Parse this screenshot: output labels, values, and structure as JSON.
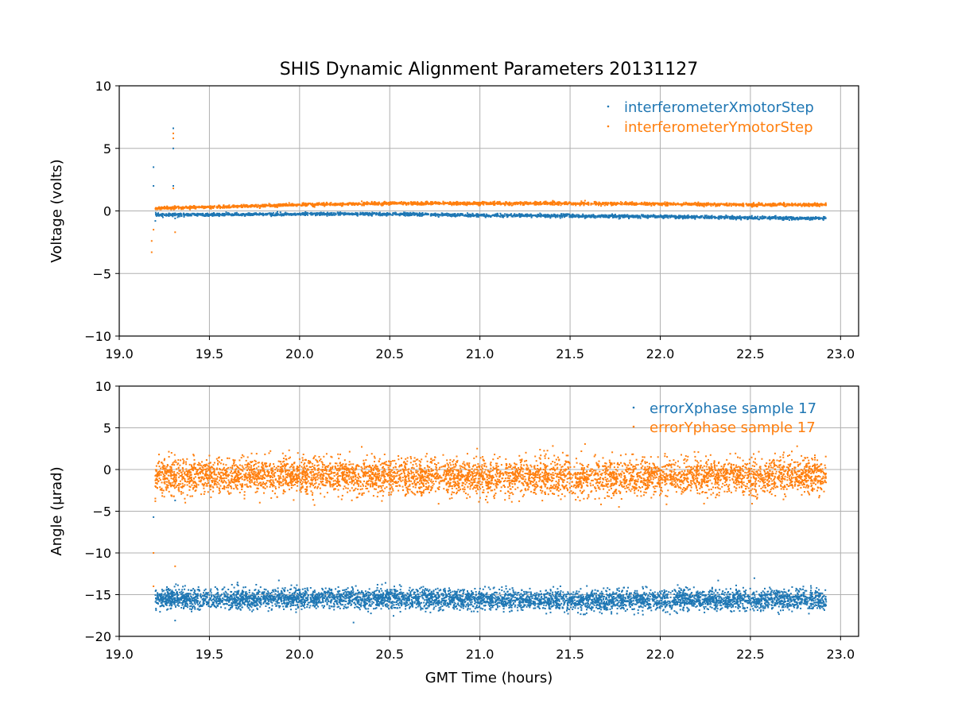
{
  "chart_data": [
    {
      "type": "scatter",
      "title": "SHIS Dynamic Alignment Parameters 20131127",
      "xlabel": "",
      "ylabel": "Voltage (volts)",
      "xlim": [
        19.0,
        23.1
      ],
      "ylim": [
        -10,
        10
      ],
      "xticks": [
        "19.0",
        "19.5",
        "20.0",
        "20.5",
        "21.0",
        "21.5",
        "22.0",
        "22.5",
        "23.0"
      ],
      "yticks": [
        "−10",
        "−5",
        "0",
        "5",
        "10"
      ],
      "grid": true,
      "legend_position": "top-right",
      "series": [
        {
          "name": "interferometerXmotorStep",
          "color": "#1f77b4",
          "x": [
            19.2,
            19.3,
            19.5,
            20.0,
            20.5,
            21.0,
            21.5,
            22.0,
            22.5,
            22.92
          ],
          "y": [
            -0.3,
            -0.3,
            -0.3,
            -0.25,
            -0.25,
            -0.35,
            -0.4,
            -0.45,
            -0.55,
            -0.6
          ],
          "outliers": [
            [
              19.19,
              3.5
            ],
            [
              19.19,
              2.0
            ],
            [
              19.2,
              -0.8
            ],
            [
              19.3,
              6.6
            ],
            [
              19.3,
              5.0
            ],
            [
              19.3,
              2.0
            ],
            [
              19.31,
              -0.6
            ]
          ]
        },
        {
          "name": "interferometerYmotorStep",
          "color": "#ff7f0e",
          "x": [
            19.2,
            19.3,
            19.5,
            20.0,
            20.5,
            21.0,
            21.5,
            22.0,
            22.5,
            22.92
          ],
          "y": [
            0.2,
            0.25,
            0.3,
            0.5,
            0.6,
            0.6,
            0.6,
            0.55,
            0.5,
            0.5
          ],
          "outliers": [
            [
              19.18,
              -3.3
            ],
            [
              19.18,
              -2.4
            ],
            [
              19.19,
              -1.5
            ],
            [
              19.3,
              6.2
            ],
            [
              19.3,
              5.8
            ],
            [
              19.3,
              1.8
            ],
            [
              19.31,
              -1.7
            ]
          ]
        }
      ]
    },
    {
      "type": "scatter",
      "title": "",
      "xlabel": "GMT Time (hours)",
      "ylabel": "Angle (μrad)",
      "xlim": [
        19.0,
        23.1
      ],
      "ylim": [
        -20,
        10
      ],
      "xticks": [
        "19.0",
        "19.5",
        "20.0",
        "20.5",
        "21.0",
        "21.5",
        "22.0",
        "22.5",
        "23.0"
      ],
      "yticks": [
        "−20",
        "−15",
        "−10",
        "−5",
        "0",
        "5",
        "10"
      ],
      "grid": true,
      "legend_position": "top-right",
      "series": [
        {
          "name": "errorXphase sample 17",
          "color": "#1f77b4",
          "x": [
            19.2,
            19.5,
            20.0,
            20.5,
            21.0,
            21.5,
            22.0,
            22.5,
            22.92
          ],
          "y": [
            -15.5,
            -15.6,
            -15.4,
            -15.5,
            -15.6,
            -15.7,
            -15.6,
            -15.6,
            -15.6
          ],
          "spread": 1.8,
          "outliers": [
            [
              19.19,
              -5.7
            ],
            [
              19.31,
              -3.7
            ],
            [
              19.31,
              -18.1
            ]
          ]
        },
        {
          "name": "errorYphase sample 17",
          "color": "#ff7f0e",
          "x": [
            19.2,
            19.5,
            20.0,
            20.5,
            21.0,
            21.5,
            22.0,
            22.5,
            22.92
          ],
          "y": [
            -0.8,
            -0.7,
            -0.6,
            -0.9,
            -0.9,
            -1.0,
            -0.9,
            -0.8,
            -0.7
          ],
          "spread": 3.2,
          "outliers": [
            [
              19.19,
              -10.0
            ],
            [
              19.19,
              -14.0
            ],
            [
              19.2,
              -3.8
            ],
            [
              19.31,
              -11.6
            ],
            [
              19.29,
              2.0
            ]
          ]
        }
      ]
    }
  ]
}
